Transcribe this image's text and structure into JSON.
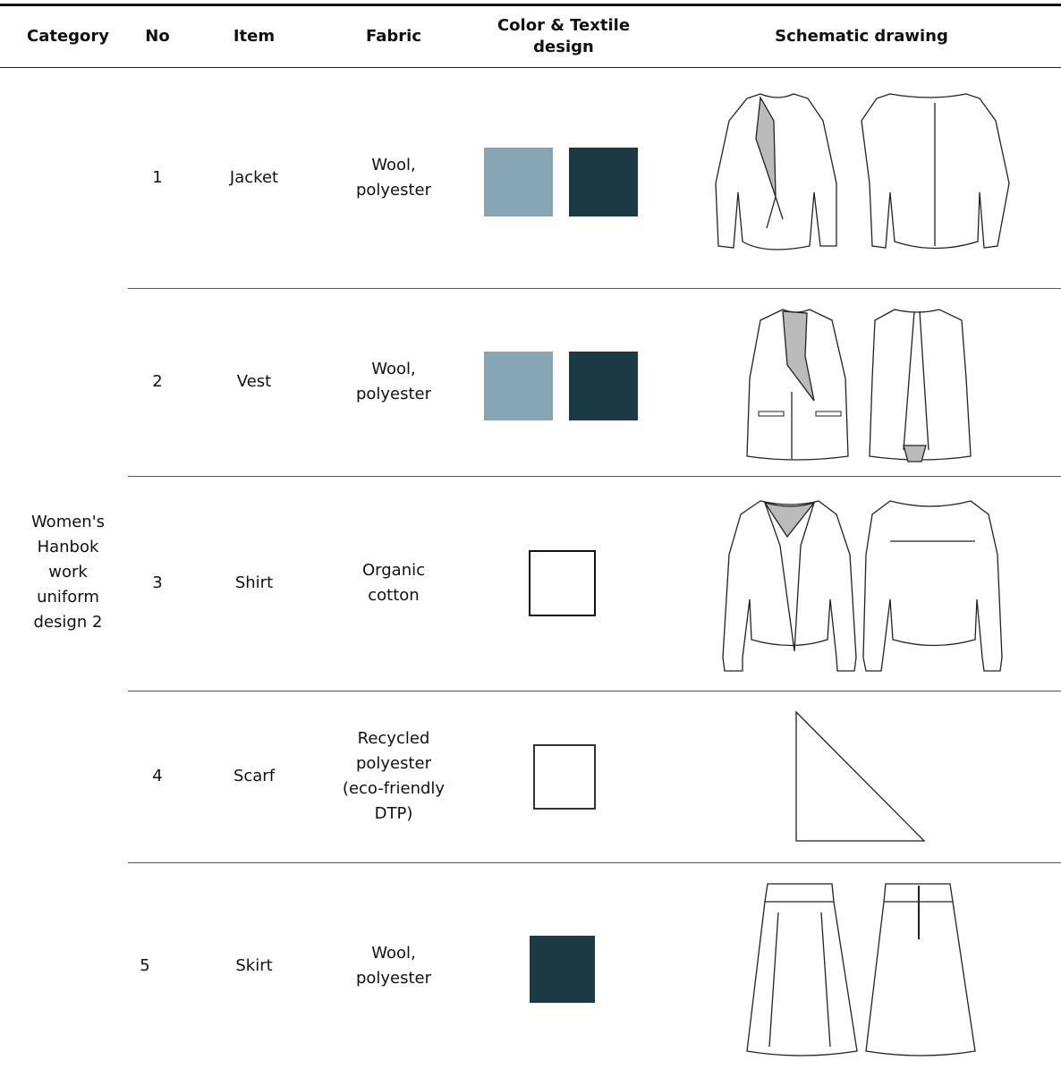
{
  "header": {
    "category": "Category",
    "no": "No",
    "item": "Item",
    "fabric": "Fabric",
    "color": "Color & Textile design",
    "drawing": "Schematic drawing"
  },
  "category": "Women's Hanbok work uniform design 2",
  "rows": [
    {
      "no": 1,
      "item": "Jacket",
      "fabric": "Wool, polyester"
    },
    {
      "no": 2,
      "item": "Vest",
      "fabric": "Wool, polyester"
    },
    {
      "no": 3,
      "item": "Shirt",
      "fabric": "Organic cotton"
    },
    {
      "no": 4,
      "item": "Scarf",
      "fabric": "Recycled polyester (eco-friendly DTP)"
    },
    {
      "no": 5,
      "item": "Skirt",
      "fabric": "Wool, polyester"
    }
  ]
}
